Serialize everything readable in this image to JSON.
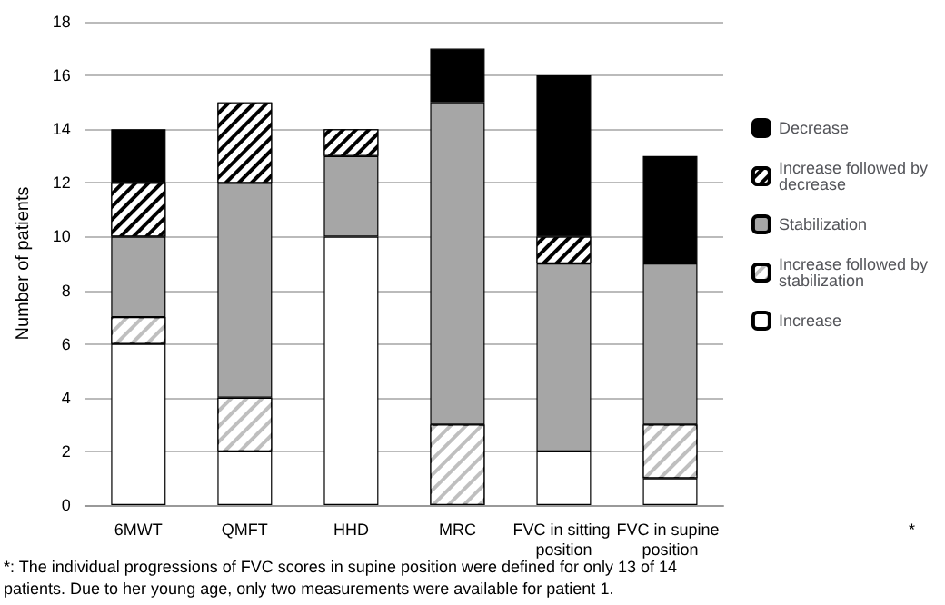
{
  "chart_data": {
    "type": "bar",
    "stacked": true,
    "ylabel": "Number of patients",
    "categories": [
      "6MWT",
      "QMFT",
      "HHD",
      "MRC",
      "FVC in sitting position",
      "FVC in supine position"
    ],
    "series": [
      {
        "name": "Increase",
        "color": "#ffffff",
        "values": [
          6,
          2,
          10,
          0,
          2,
          1
        ]
      },
      {
        "name": "Increase followed by stabilization",
        "color": "#bfbfbf",
        "values": [
          1,
          2,
          0,
          3,
          0,
          2
        ]
      },
      {
        "name": "Stabilization",
        "color": "#a6a6a6",
        "values": [
          3,
          8,
          3,
          12,
          7,
          6
        ]
      },
      {
        "name": "Increase followed by decrease",
        "color": "#000000",
        "values": [
          2,
          3,
          1,
          0,
          1,
          0
        ]
      },
      {
        "name": "Decrease",
        "color": "#000000",
        "values": [
          2,
          0,
          0,
          2,
          6,
          4
        ]
      }
    ],
    "ylim": [
      0,
      18
    ],
    "yticks": [
      0,
      2,
      4,
      6,
      8,
      10,
      12,
      14,
      16,
      18
    ],
    "grid": "y",
    "legend": "right",
    "annotations": [
      "*",
      "*: The individual progressions of FVC scores in supine position were defined for only 13 of 14 patients. Due to her young age, only two measurements were available for patient 1."
    ]
  }
}
